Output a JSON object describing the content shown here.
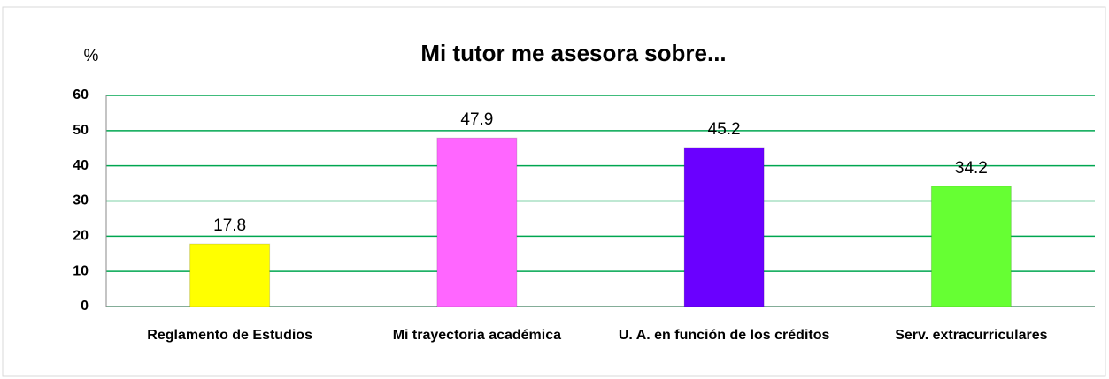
{
  "chart_data": {
    "type": "bar",
    "title": "Mi tutor me asesora sobre...",
    "y_label": "%",
    "categories": [
      "Reglamento de Estudios",
      "Mi trayectoria académica",
      "U. A. en función de los créditos",
      "Serv. extracurriculares"
    ],
    "values": [
      17.8,
      47.9,
      45.2,
      34.2
    ],
    "colors": [
      "#ffff00",
      "#ff66ff",
      "#6a00ff",
      "#66ff33"
    ],
    "ylim": [
      0,
      60
    ],
    "yticks": [
      0,
      10,
      20,
      30,
      40,
      50,
      60
    ],
    "grid": true,
    "grid_color": "#00a650"
  }
}
